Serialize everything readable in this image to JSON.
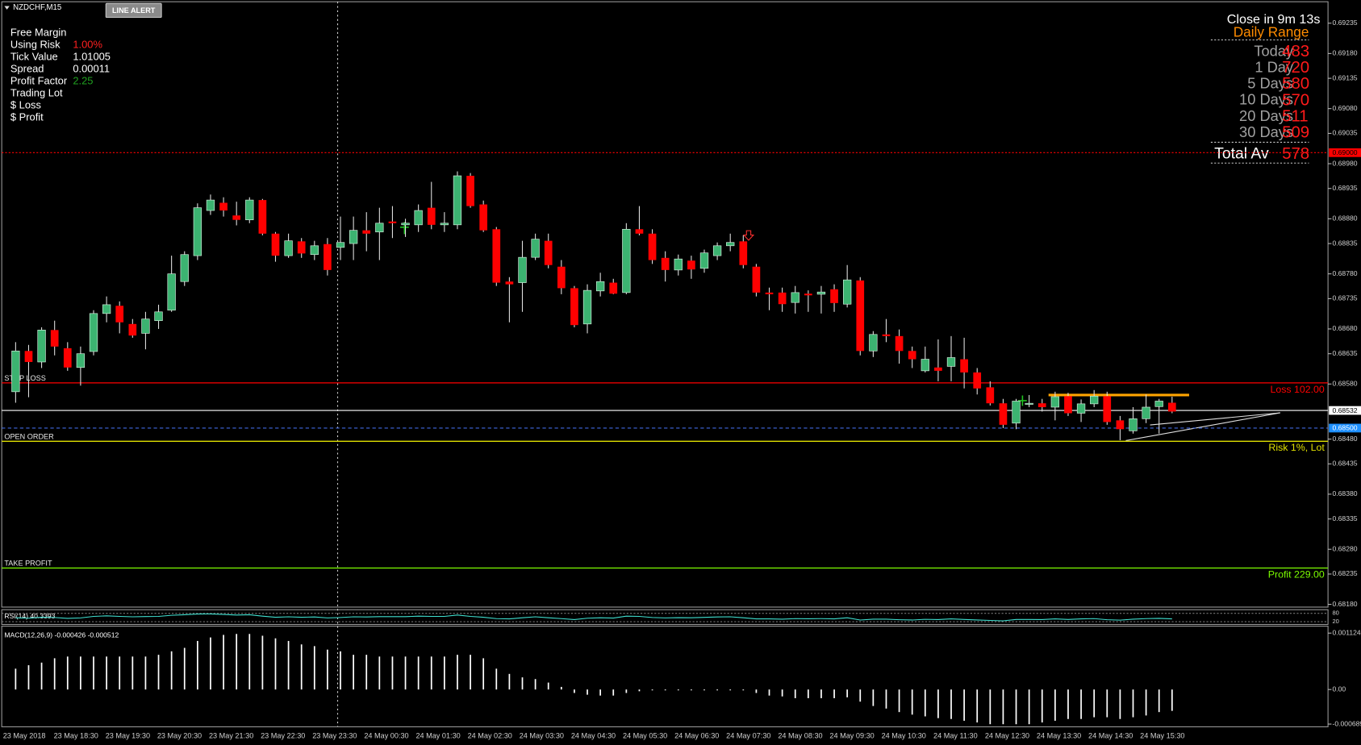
{
  "window": {
    "symbol": "NZDCHF,M15",
    "button": "LINE ALERT"
  },
  "info_panel": [
    {
      "label": "Free Margin"
    },
    {
      "label": "Using Risk",
      "value": "1.00%",
      "color": "#ff2020"
    },
    {
      "label": "Tick Value",
      "value": "1.01005",
      "color": "#ffffff"
    },
    {
      "label": "Spread",
      "value": "0.00011",
      "color": "#ffffff"
    },
    {
      "label": "Profit Factor",
      "value": "2.25",
      "color": "#20a020"
    },
    {
      "label": "Trading Lot"
    },
    {
      "label": "$ Loss"
    },
    {
      "label": "$ Profit"
    }
  ],
  "daily_range": {
    "countdown": "Close in 9m 13s",
    "title": "Daily Range",
    "rows": [
      {
        "label": "Today",
        "value": 483
      },
      {
        "label": "1 Day",
        "value": 720
      },
      {
        "label": "5 Days",
        "value": 580
      },
      {
        "label": "10 Days",
        "value": 570
      },
      {
        "label": "20 Days",
        "value": 511
      },
      {
        "label": "30 Days",
        "value": 509
      }
    ],
    "total": {
      "label": "Total Av",
      "value": 578
    }
  },
  "chart": {
    "ylim": [
      0.68175,
      0.69274
    ],
    "yticks": [
      0.69235,
      {
        "value": 0.6918,
        "label": "0.69180"
      },
      0.69135,
      {
        "value": 0.6908,
        "label": "0.69080"
      },
      0.69035,
      {
        "value": 0.6898,
        "label": "0.68980"
      },
      0.68935,
      {
        "value": 0.6888,
        "label": "0.68880"
      },
      0.68835,
      {
        "value": 0.6878,
        "label": "0.68780"
      },
      0.68735,
      {
        "value": 0.6868,
        "label": "0.68680"
      },
      0.68635,
      {
        "value": 0.6858,
        "label": "0.68580"
      },
      {
        "value": 0.6848,
        "label": "0.68480"
      },
      0.68435,
      {
        "value": 0.6838,
        "label": "0.68380"
      },
      0.68335,
      {
        "value": 0.6828,
        "label": "0.68280"
      },
      0.68235,
      {
        "value": 0.6818,
        "label": "0.68180"
      }
    ],
    "bull_color": "#3cb371",
    "bear_color": "#ff0000",
    "candles": {
      "open": [
        0.68566,
        0.6864,
        0.6862,
        0.68678,
        0.68645,
        0.6861,
        0.68639,
        0.68708,
        0.68722,
        0.68689,
        0.68672,
        0.68695,
        0.68714,
        0.68766,
        0.68813,
        0.68895,
        0.68909,
        0.68886,
        0.68878,
        0.68914,
        0.68853,
        0.68813,
        0.68839,
        0.68815,
        0.68834,
        0.68828,
        0.68835,
        0.68859,
        0.68856,
        0.68875,
        0.68869,
        0.68869,
        0.689,
        0.68869,
        0.68869,
        0.68958,
        0.68906,
        0.68861,
        0.68766,
        0.68764,
        0.6881,
        0.6884,
        0.68793,
        0.68754,
        0.68689,
        0.68749,
        0.68764,
        0.68746,
        0.68861,
        0.68853,
        0.68809,
        0.68787,
        0.68804,
        0.6879,
        0.68813,
        0.68831,
        0.68839,
        0.68793,
        0.68746,
        0.68746,
        0.68728,
        0.68744,
        0.68743,
        0.68752,
        0.68725,
        0.68768,
        0.6864,
        0.6867,
        0.68667,
        0.6864,
        0.68604,
        0.6861,
        0.68612,
        0.68625,
        0.68601,
        0.68574,
        0.68545,
        0.68509,
        0.68543,
        0.68545,
        0.68538,
        0.68558,
        0.68527,
        0.68544,
        0.68558,
        0.68514,
        0.68495,
        0.68517,
        0.68539,
        0.68546
      ],
      "high": [
        0.68656,
        0.68651,
        0.68683,
        0.68695,
        0.68656,
        0.68648,
        0.68714,
        0.68739,
        0.6873,
        0.68698,
        0.68711,
        0.68724,
        0.68813,
        0.68821,
        0.68908,
        0.68924,
        0.68919,
        0.68911,
        0.68919,
        0.68916,
        0.68856,
        0.68853,
        0.68845,
        0.6884,
        0.68845,
        0.68884,
        0.68884,
        0.68892,
        0.689,
        0.68903,
        0.6888,
        0.68906,
        0.68947,
        0.68892,
        0.68966,
        0.68963,
        0.68913,
        0.68865,
        0.68774,
        0.6884,
        0.68853,
        0.68853,
        0.68805,
        0.68758,
        0.68761,
        0.68782,
        0.68771,
        0.68872,
        0.68903,
        0.68861,
        0.68821,
        0.68815,
        0.68813,
        0.68824,
        0.68837,
        0.68853,
        0.6885,
        0.68798,
        0.68755,
        0.68755,
        0.68758,
        0.6875,
        0.68758,
        0.68761,
        0.68796,
        0.68774,
        0.68676,
        0.68698,
        0.68679,
        0.68648,
        0.68648,
        0.68661,
        0.68667,
        0.68664,
        0.68609,
        0.68585,
        0.68553,
        0.68553,
        0.6856,
        0.68553,
        0.68566,
        0.68564,
        0.68552,
        0.68569,
        0.68566,
        0.68522,
        0.68538,
        0.68561,
        0.68553,
        0.68557
      ],
      "low": [
        0.68546,
        0.68556,
        0.68609,
        0.68632,
        0.68604,
        0.68577,
        0.68632,
        0.68692,
        0.68672,
        0.68664,
        0.68643,
        0.6868,
        0.68711,
        0.68758,
        0.68805,
        0.68887,
        0.68884,
        0.68868,
        0.68872,
        0.6885,
        0.68802,
        0.68809,
        0.68809,
        0.68805,
        0.68777,
        0.68805,
        0.68805,
        0.68821,
        0.68805,
        0.68845,
        0.68847,
        0.68856,
        0.68861,
        0.68856,
        0.68861,
        0.689,
        0.68856,
        0.68758,
        0.68692,
        0.68711,
        0.68805,
        0.6879,
        0.68743,
        0.68683,
        0.68672,
        0.68739,
        0.68743,
        0.68743,
        0.6885,
        0.68798,
        0.68766,
        0.68777,
        0.68771,
        0.68782,
        0.68805,
        0.68821,
        0.6879,
        0.68739,
        0.68714,
        0.68711,
        0.68708,
        0.68711,
        0.68708,
        0.68711,
        0.68719,
        0.68632,
        0.68629,
        0.68656,
        0.68617,
        0.68609,
        0.68601,
        0.68585,
        0.68585,
        0.68572,
        0.68561,
        0.68541,
        0.685,
        0.68498,
        0.68538,
        0.6853,
        0.68514,
        0.68522,
        0.68511,
        0.68538,
        0.68506,
        0.68478,
        0.6849,
        0.68509,
        0.6849,
        0.68527
      ],
      "close": [
        0.6864,
        0.6862,
        0.68678,
        0.68648,
        0.6861,
        0.68635,
        0.68708,
        0.68724,
        0.68692,
        0.68668,
        0.68698,
        0.68711,
        0.6878,
        0.68815,
        0.689,
        0.68914,
        0.68895,
        0.68878,
        0.68914,
        0.68853,
        0.68813,
        0.6884,
        0.68817,
        0.68831,
        0.68787,
        0.68837,
        0.68859,
        0.68853,
        0.68872,
        0.68872,
        0.68872,
        0.68895,
        0.68869,
        0.68872,
        0.68958,
        0.68903,
        0.68859,
        0.68764,
        0.68761,
        0.6881,
        0.68843,
        0.68796,
        0.68754,
        0.68687,
        0.6875,
        0.68766,
        0.68744,
        0.68861,
        0.68853,
        0.68805,
        0.68787,
        0.68807,
        0.68788,
        0.68818,
        0.68831,
        0.68837,
        0.68796,
        0.68746,
        0.68743,
        0.68725,
        0.68746,
        0.68741,
        0.68747,
        0.68727,
        0.68769,
        0.6864,
        0.6867,
        0.68667,
        0.6864,
        0.68625,
        0.68625,
        0.68604,
        0.68628,
        0.68601,
        0.68572,
        0.68545,
        0.68506,
        0.68549,
        0.68545,
        0.68538,
        0.68557,
        0.68527,
        0.68544,
        0.68558,
        0.68511,
        0.68498,
        0.68517,
        0.68538,
        0.68549,
        0.6853
      ]
    },
    "markers": [
      {
        "value": 0.69,
        "label": "0.69000",
        "color": "#ff0000",
        "text_color": "#000000",
        "line_color": "#ff0000",
        "line": "dotted"
      },
      {
        "value": 0.68532,
        "label": "0.68532",
        "color": "#ffffff",
        "text_color": "#000000",
        "line_color": "#ffffff",
        "line": "solid"
      },
      {
        "value": 0.685,
        "label": "0.68500",
        "color": "#1e90ff",
        "text_color": "#ffffff",
        "line_color": "#4169e1",
        "line": "dashed"
      }
    ],
    "levels": [
      {
        "label": "STOP LOSS",
        "value": 0.68582,
        "tag": "Loss 102.00",
        "color": "#ff0000"
      },
      {
        "label": "OPEN ORDER",
        "value": 0.68476,
        "tag": "Risk 1%, Lot",
        "color": "#e0e000"
      },
      {
        "label": "TAKE PROFIT",
        "value": 0.68246,
        "tag": "Profit 229.00",
        "color": "#7cfc00"
      }
    ],
    "range_line": {
      "value": 0.6856,
      "color": "#ffa500"
    },
    "time_labels": [
      "23 May 2018",
      "23 May 18:30",
      "23 May 19:30",
      "23 May 20:30",
      "23 May 21:30",
      "23 May 22:30",
      "23 May 23:30",
      "24 May 00:30",
      "24 May 01:30",
      "24 May 02:30",
      "24 May 03:30",
      "24 May 04:30",
      "24 May 05:30",
      "24 May 06:30",
      "24 May 07:30",
      "24 May 08:30",
      "24 May 09:30",
      "24 May 10:30",
      "24 May 11:30",
      "24 May 12:30",
      "24 May 13:30",
      "24 May 14:30",
      "24 May 15:30"
    ]
  },
  "rsi": {
    "label": "RSI(14) 40.3393",
    "ylim": [
      0,
      100
    ],
    "yticks": [
      80,
      20
    ],
    "color": "#40e0d0",
    "values": [
      48,
      45,
      52,
      50,
      44,
      47,
      58,
      62,
      58,
      55,
      57,
      58,
      66,
      70,
      75,
      76,
      72,
      68,
      70,
      60,
      52,
      55,
      52,
      54,
      47,
      50,
      55,
      54,
      56,
      56,
      56,
      60,
      58,
      58,
      68,
      58,
      52,
      42,
      40,
      48,
      55,
      48,
      42,
      35,
      45,
      48,
      46,
      60,
      58,
      50,
      47,
      49,
      48,
      51,
      54,
      55,
      48,
      40,
      40,
      38,
      42,
      41,
      42,
      40,
      48,
      32,
      38,
      38,
      34,
      32,
      37,
      35,
      40,
      36,
      32,
      29,
      26,
      36,
      36,
      35,
      40,
      36,
      40,
      42,
      34,
      31,
      38,
      42,
      44,
      40.3393
    ]
  },
  "macd": {
    "label": "MACD(12,26,9) -0.000426 -0.000512",
    "ylim": [
      -0.000726,
      0.001245
    ],
    "yticks": [
      0.001124,
      {
        "value": 0,
        "label": "0.00"
      },
      -0.000689
    ],
    "color": "#ffffff",
    "values": [
      0.000415,
      0.000484,
      0.000536,
      0.000623,
      0.000657,
      0.000657,
      0.000657,
      0.000657,
      0.000657,
      0.000657,
      0.000657,
      0.000692,
      0.000761,
      0.00083,
      0.000968,
      0.001038,
      0.001089,
      0.001107,
      0.001107,
      0.001072,
      0.00102,
      0.000968,
      0.000899,
      0.000865,
      0.000795,
      0.000761,
      0.000692,
      0.000692,
      0.000657,
      0.000657,
      0.000657,
      0.000657,
      0.000657,
      0.000657,
      0.000692,
      0.000692,
      0.000623,
      0.000415,
      0.000311,
      0.000242,
      0.000208,
      0.000138,
      5.2e-05,
      -6.9e-05,
      -0.000104,
      -0.000121,
      -0.000121,
      -6.9e-05,
      -3.5e-05,
      -1.7e-05,
      -1.7e-05,
      -1.7e-05,
      -1.7e-05,
      -1.7e-05,
      -1.7e-05,
      -1.7e-05,
      -1.7e-05,
      -6.9e-05,
      -0.000121,
      -0.000138,
      -0.000173,
      -0.000173,
      -0.000173,
      -0.000173,
      -0.000156,
      -0.000242,
      -0.000329,
      -0.00038,
      -0.00045,
      -0.000501,
      -0.000536,
      -0.000571,
      -0.000588,
      -0.000623,
      -0.000657,
      -0.000692,
      -0.000692,
      -0.000692,
      -0.000692,
      -0.000657,
      -0.000623,
      -0.000588,
      -0.000588,
      -0.000553,
      -0.000553,
      -0.000588,
      -0.000553,
      -0.000518,
      -0.00045,
      -0.000426
    ]
  }
}
